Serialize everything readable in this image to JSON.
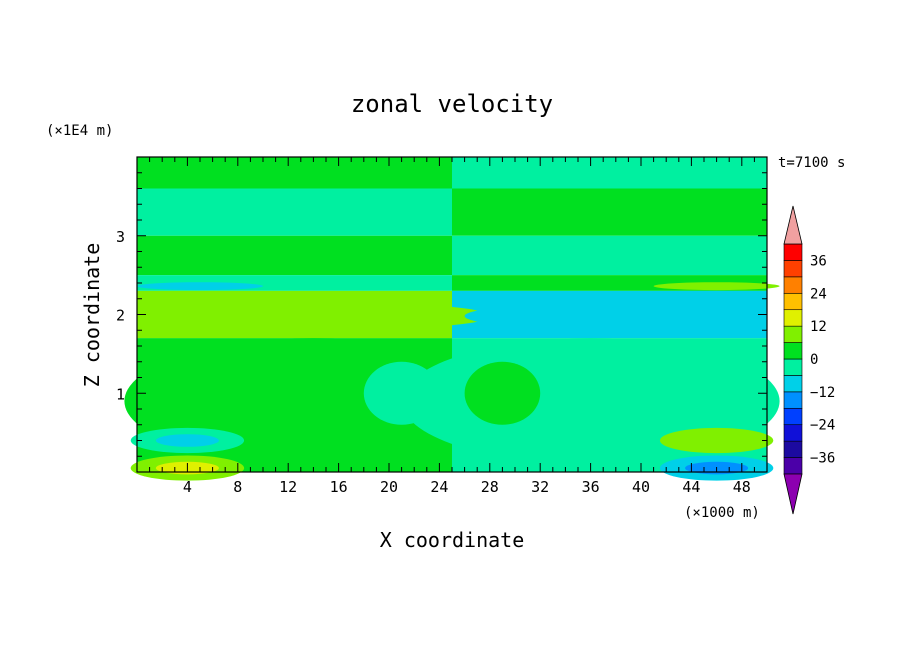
{
  "chart_data": {
    "type": "heatmap",
    "title": "zonal velocity",
    "xlabel": "X coordinate",
    "ylabel": "Z coordinate",
    "x_unit": "(×1000 m)",
    "y_unit": "(×1E4 m)",
    "time_label": "t=7100 s",
    "xlim": [
      0,
      50
    ],
    "ylim": [
      0,
      4
    ],
    "x_ticks": [
      "4",
      "8",
      "12",
      "16",
      "20",
      "24",
      "28",
      "32",
      "36",
      "40",
      "44",
      "48"
    ],
    "y_ticks": [
      "1",
      "2",
      "3"
    ],
    "colorbar": {
      "tick_labels": [
        "36",
        "24",
        "12",
        "0",
        "−12",
        "−24",
        "−36"
      ],
      "tick_values": [
        36,
        24,
        12,
        0,
        -12,
        -24,
        -36
      ],
      "levels": [
        -42,
        -36,
        -30,
        -24,
        -18,
        -12,
        -6,
        0,
        6,
        12,
        18,
        24,
        30,
        36,
        42
      ],
      "colors": [
        "#8c00b0",
        "#4b00a8",
        "#1c0aa0",
        "#1010d8",
        "#0040ff",
        "#0090ff",
        "#00d0e8",
        "#00f0a0",
        "#00e020",
        "#80f000",
        "#e0f000",
        "#ffc000",
        "#ff8000",
        "#ff4000",
        "#ff0000",
        "#f0a0a0"
      ],
      "extend": "both"
    },
    "field_bands": {
      "description_units": "z in 1E4 m, x in 1000 m, value in m/s (approximate)",
      "left_half": [
        {
          "z_from": 3.6,
          "z_to": 4.0,
          "value": 3
        },
        {
          "z_from": 3.0,
          "z_to": 3.6,
          "value": -3
        },
        {
          "z_from": 2.5,
          "z_to": 3.0,
          "value": 3
        },
        {
          "z_from": 2.3,
          "z_to": 2.5,
          "value": -3
        },
        {
          "z_from": 1.7,
          "z_to": 2.3,
          "value": 8
        },
        {
          "z_from": 0.0,
          "z_to": 1.7,
          "value": 2
        }
      ],
      "right_half": [
        {
          "z_from": 3.6,
          "z_to": 4.0,
          "value": -3
        },
        {
          "z_from": 3.0,
          "z_to": 3.6,
          "value": 3
        },
        {
          "z_from": 2.5,
          "z_to": 3.0,
          "value": -3
        },
        {
          "z_from": 2.3,
          "z_to": 2.5,
          "value": 3
        },
        {
          "z_from": 1.7,
          "z_to": 2.3,
          "value": -8
        },
        {
          "z_from": 0.0,
          "z_to": 1.7,
          "value": -2
        }
      ],
      "extremes": [
        {
          "x": 4,
          "z": 0.05,
          "value": 15
        },
        {
          "x": 4,
          "z": 0.4,
          "value": -10
        },
        {
          "x": 46,
          "z": 0.05,
          "value": -15
        },
        {
          "x": 46,
          "z": 0.4,
          "value": 10
        }
      ]
    }
  }
}
